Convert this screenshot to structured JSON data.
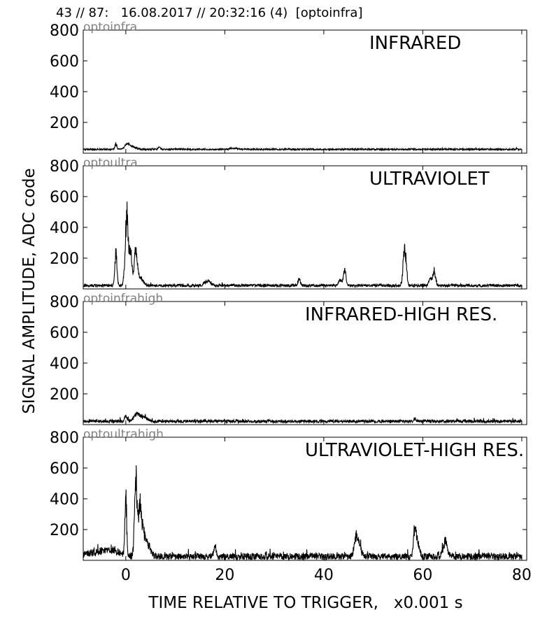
{
  "header": "43 // 87:   16.08.2017 // 20:32:16 (4)  [optoinfra]",
  "chart_data": {
    "type": "line",
    "xlabel": "TIME RELATIVE TO TRIGGER,   x0.001 s",
    "ylabel": "SIGNAL AMPLITUDE,  ADC code",
    "xlim": [
      -8.6,
      81
    ],
    "ylim": [
      0,
      800
    ],
    "xticks": [
      0,
      20,
      40,
      60,
      80
    ],
    "yticks": [
      200,
      400,
      600,
      800
    ],
    "grid": false,
    "panels": [
      {
        "name": "optoinfra",
        "title": "INFRARED",
        "x_end": 80,
        "baseline": 25,
        "noise": 5,
        "peaks": [
          [
            -2,
            35,
            0.3
          ],
          [
            0.2,
            25,
            0.6
          ],
          [
            1,
            20,
            1.2
          ],
          [
            6.8,
            15,
            0.3
          ],
          [
            22,
            8,
            1
          ]
        ]
      },
      {
        "name": "optoultra",
        "title": "ULTRAVIOLET",
        "x_end": 80,
        "baseline": 22,
        "noise": 9,
        "peaks": [
          [
            -2,
            210,
            0.3
          ],
          [
            0.2,
            440,
            0.45
          ],
          [
            1,
            200,
            0.35
          ],
          [
            1.9,
            130,
            0.4
          ],
          [
            2.2,
            110,
            0.5
          ],
          [
            3.2,
            40,
            0.6
          ],
          [
            16.5,
            30,
            0.8
          ],
          [
            35,
            45,
            0.3
          ],
          [
            44.2,
            110,
            0.35
          ],
          [
            43.3,
            40,
            0.4
          ],
          [
            56.2,
            200,
            0.3
          ],
          [
            56.6,
            140,
            0.3
          ],
          [
            62.3,
            95,
            0.4
          ],
          [
            61.5,
            40,
            0.4
          ]
        ]
      },
      {
        "name": "optoinfrahigh",
        "title": "INFRARED-HIGH RES.",
        "x_end": 80,
        "baseline": 22,
        "noise": 10,
        "peaks": [
          [
            0,
            30,
            0.4
          ],
          [
            2.2,
            40,
            0.8
          ],
          [
            3.5,
            25,
            1.2
          ],
          [
            58.4,
            15,
            0.3
          ]
        ]
      },
      {
        "name": "optoultrahigh",
        "title": "ULTRAVIOLET-HIGH RES.",
        "x_end": 80,
        "baseline": 25,
        "noise": 22,
        "peaks": [
          [
            -7,
            20,
            2.5
          ],
          [
            -3,
            40,
            2.5
          ],
          [
            0,
            370,
            0.25
          ],
          [
            2,
            470,
            0.35
          ],
          [
            2.8,
            300,
            0.5
          ],
          [
            3.6,
            130,
            0.6
          ],
          [
            4.6,
            60,
            0.8
          ],
          [
            18,
            70,
            0.3
          ],
          [
            46.5,
            120,
            0.5
          ],
          [
            47.2,
            60,
            0.6
          ],
          [
            58.4,
            170,
            0.4
          ],
          [
            59,
            80,
            0.5
          ],
          [
            64.5,
            90,
            0.6
          ]
        ]
      }
    ]
  }
}
